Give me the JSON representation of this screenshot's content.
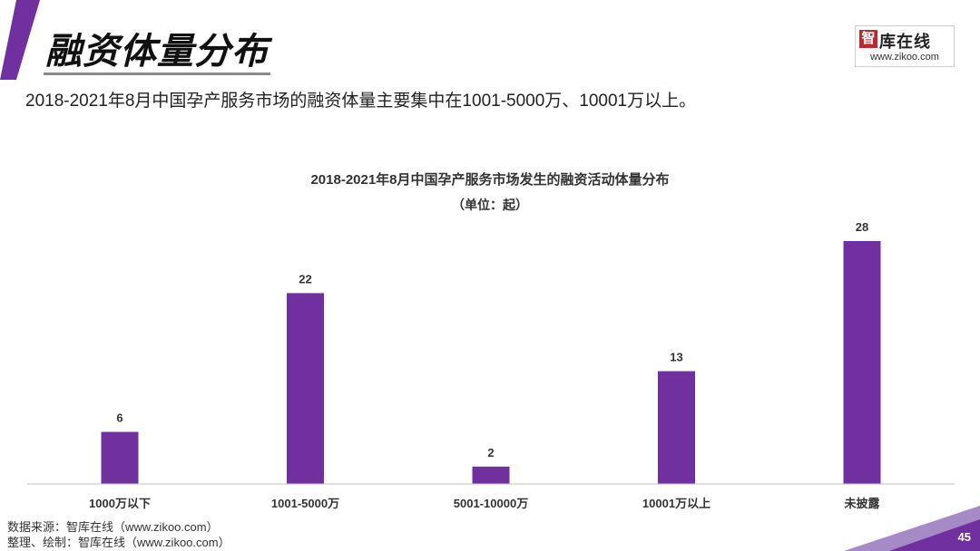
{
  "page": {
    "title": "融资体量分布",
    "subtitle": "2018-2021年8月中国孕产服务市场的融资体量主要集中在1001-5000万、10001万以上。",
    "page_number": "45"
  },
  "logo": {
    "mark": "智",
    "name": "库在线",
    "url": "www.zikoo.com"
  },
  "footer": {
    "source": "数据来源：智库在线（www.zikoo.com）",
    "made_by": "整理、绘制：智库在线（www.zikoo.com）"
  },
  "colors": {
    "accent": "#7030A0",
    "bar": "#7030A0"
  },
  "chart_data": {
    "type": "bar",
    "title": "2018-2021年8月中国孕产服务市场发生的融资活动体量分布",
    "subtitle": "（单位：起）",
    "categories": [
      "1000万以下",
      "1001-5000万",
      "5001-10000万",
      "10001万以上",
      "未披露"
    ],
    "values": [
      6,
      22,
      2,
      13,
      28
    ],
    "ylim": [
      0,
      28
    ],
    "grid": false,
    "legend": "none"
  }
}
